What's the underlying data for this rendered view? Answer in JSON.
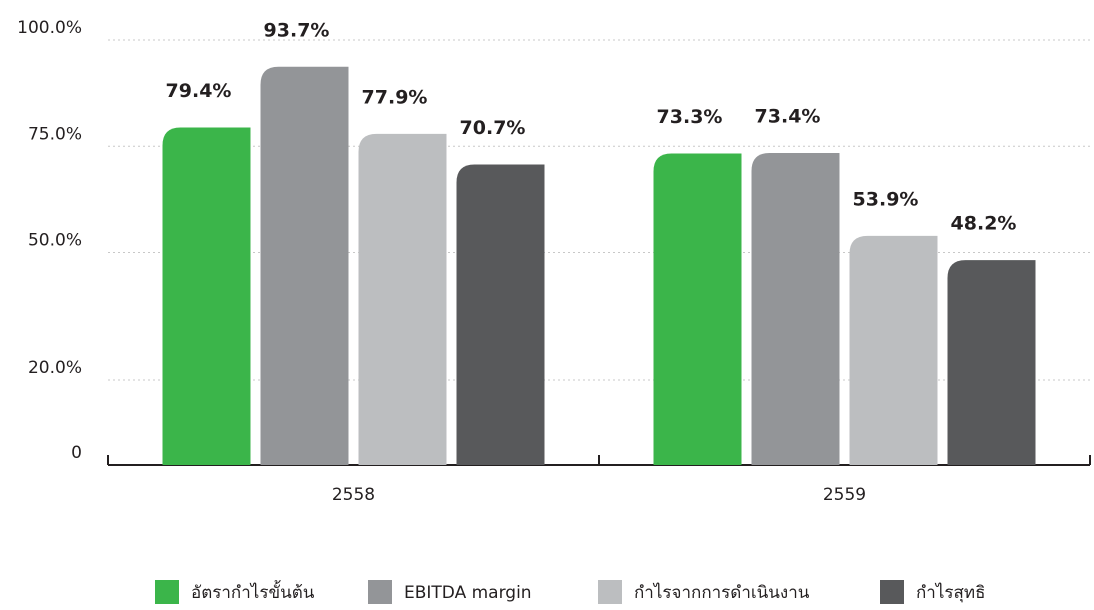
{
  "chart_data": {
    "type": "bar",
    "categories": [
      "2558",
      "2559"
    ],
    "series": [
      {
        "name": "อัตรากำไรขั้นต้น",
        "color": "#3bb54a",
        "values": [
          79.4,
          73.3
        ],
        "value_labels": [
          "79.4%",
          "73.3%"
        ]
      },
      {
        "name": "EBITDA margin",
        "color": "#939598",
        "values": [
          93.7,
          73.4
        ],
        "value_labels": [
          "93.7%",
          "73.4%"
        ]
      },
      {
        "name": "กำไรจากการดำเนินงาน",
        "color": "#bcbec0",
        "values": [
          77.9,
          53.9
        ],
        "value_labels": [
          "77.9%",
          "53.9%"
        ]
      },
      {
        "name": "กำไรสุทธิ",
        "color": "#58595b",
        "values": [
          70.7,
          48.2
        ],
        "value_labels": [
          "70.7%",
          "48.2%"
        ]
      }
    ],
    "ylim": [
      0,
      100
    ],
    "yticks": [
      0,
      {
        "value": 20,
        "label": "20.0%"
      },
      {
        "value": 50,
        "label": "50.0%"
      },
      {
        "value": 75,
        "label": "75.0%"
      },
      {
        "value": 100,
        "label": "100.0%"
      }
    ],
    "grid": true,
    "legend": "bottom"
  }
}
